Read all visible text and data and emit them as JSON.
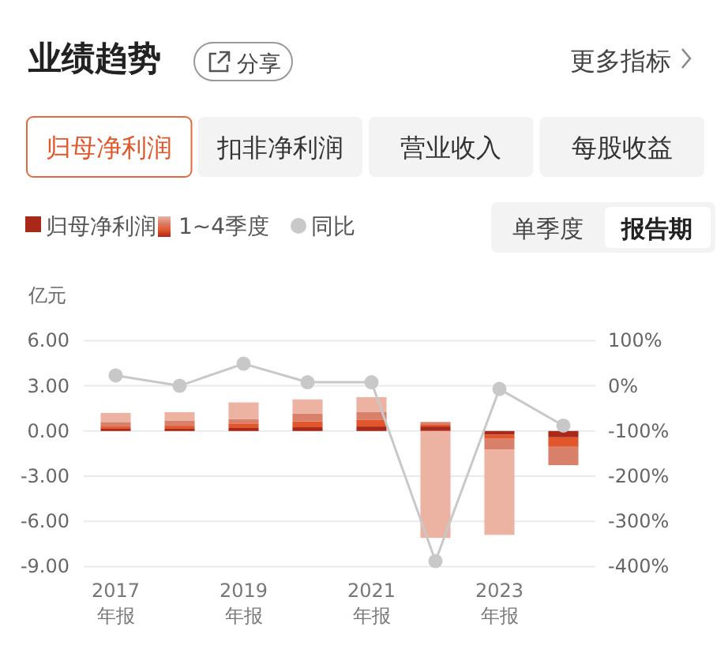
{
  "chart_data": {
    "type": "bar",
    "title": "业绩趋势",
    "ylabel": "亿元",
    "annotations": [
      "分享",
      "更多指标",
      "归母净利润",
      "扣非净利润",
      "营业收入",
      "每股收益",
      "单季度",
      "报告期"
    ],
    "categories": [
      "2017\n年报",
      null,
      "2019\n年报",
      null,
      "2021\n年报",
      null,
      "2023\n年报",
      null
    ],
    "stacked": true,
    "series": [
      {
        "name": "归母净利润",
        "color": "#a8281a",
        "values": [
          0.15,
          0.15,
          0.2,
          0.25,
          0.3,
          0.3,
          -0.25,
          -0.42
        ]
      },
      {
        "name": "1~4季度",
        "color": "#e2562c",
        "values": [
          0.15,
          0.2,
          0.3,
          0.38,
          0.43,
          0.15,
          -0.27,
          -0.63
        ]
      },
      {
        "color": "#d9806a",
        "values": [
          0.3,
          0.35,
          0.3,
          0.52,
          0.52,
          0.15,
          -0.7,
          -1.22
        ]
      },
      {
        "color": "#ecb2a2",
        "values": [
          0.6,
          0.55,
          1.1,
          0.95,
          1.0,
          -7.1,
          -5.68,
          null
        ]
      },
      {
        "name": "同比",
        "type": "line",
        "axis": "y2",
        "color": "#c8c8c8",
        "marker": "circle",
        "values": [
          23,
          0,
          49,
          8,
          8,
          -388,
          -7,
          -88
        ]
      }
    ],
    "ylim": [
      -9,
      6
    ],
    "yticks": [
      {
        "value": 6,
        "label": "6.00"
      },
      {
        "value": 3,
        "label": "3.00"
      },
      {
        "value": 0,
        "label": "0.00"
      },
      {
        "value": -3,
        "label": "-3.00"
      },
      {
        "value": -6,
        "label": "-6.00"
      },
      {
        "value": -9,
        "label": "-9.00"
      }
    ],
    "y2lim": [
      -400,
      100
    ],
    "y2ticks": [
      {
        "value": 100,
        "label": "100%"
      },
      {
        "value": 0,
        "label": "0%"
      },
      {
        "value": -100,
        "label": "-100%"
      },
      {
        "value": -200,
        "label": "-200%"
      },
      {
        "value": -300,
        "label": "-300%"
      },
      {
        "value": -400,
        "label": "-400%"
      }
    ],
    "grid": "y",
    "legend": "top left"
  }
}
